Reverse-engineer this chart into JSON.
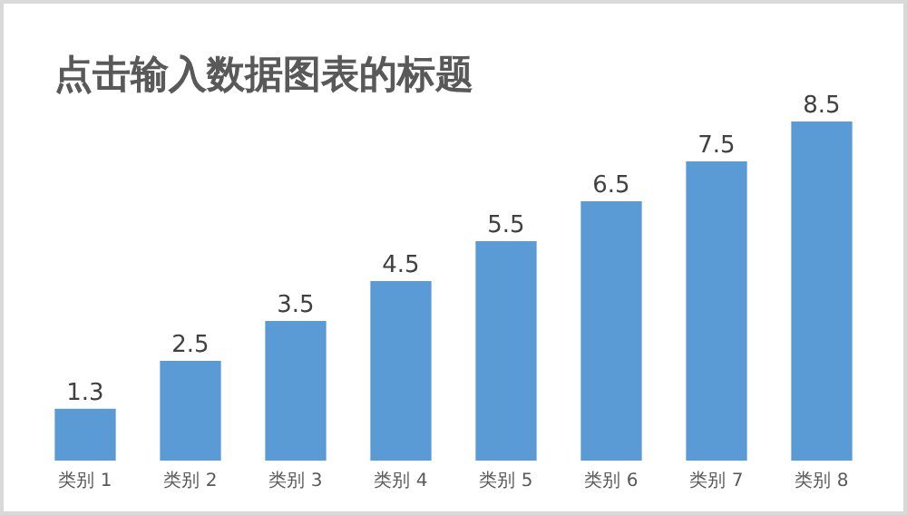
{
  "chart_data": {
    "type": "bar",
    "title": "点击输入数据图表的标题",
    "categories": [
      "类别 1",
      "类别 2",
      "类别 3",
      "类别 4",
      "类别 5",
      "类别 6",
      "类别 7",
      "类别 8"
    ],
    "values": [
      1.3,
      2.5,
      3.5,
      4.5,
      5.5,
      6.5,
      7.5,
      8.5
    ],
    "color": "#5b9bd5",
    "data_labels": true
  }
}
